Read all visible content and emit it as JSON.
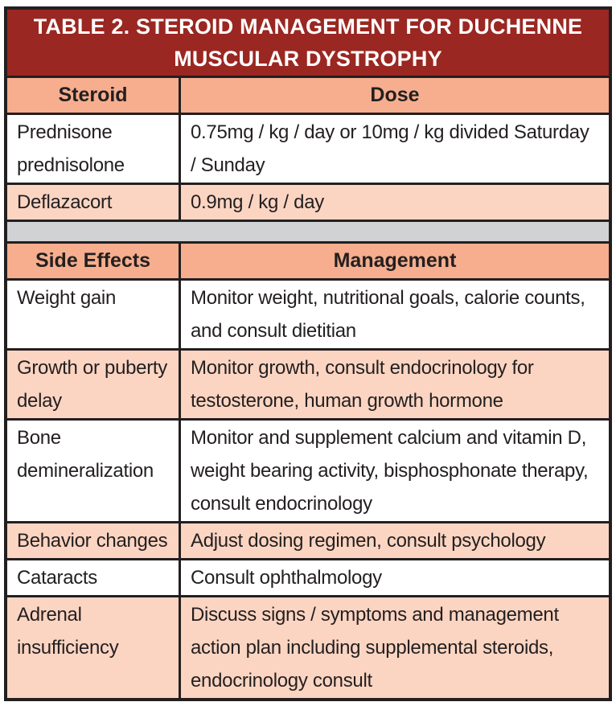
{
  "title": "TABLE 2. STEROID MANAGEMENT FOR DUCHENNE MUSCULAR DYSTROPHY",
  "colors": {
    "title_bg": "#9A2722",
    "title_text": "#FFFFFF",
    "header_bg": "#F6AE8E",
    "stripe_bg": "#FBD5C2",
    "row_bg": "#FFFFFF",
    "spacer_bg": "#D1D2D4",
    "border": "#231F20",
    "text": "#231F20"
  },
  "steroid_section": {
    "headers": [
      "Steroid",
      "Dose"
    ],
    "rows": [
      {
        "steroid": "Prednisone prednisolone",
        "dose": "0.75mg / kg / day or 10mg / kg divided Saturday / Sunday"
      },
      {
        "steroid": "Deflazacort",
        "dose": "0.9mg / kg / day"
      }
    ]
  },
  "side_effects_section": {
    "headers": [
      "Side Effects",
      "Management"
    ],
    "rows": [
      {
        "effect": "Weight gain",
        "management": "Monitor weight, nutritional goals, calorie counts, and consult dietitian"
      },
      {
        "effect": "Growth or puberty delay",
        "management": "Monitor growth, consult endocrinology for testosterone, human growth hormone"
      },
      {
        "effect": "Bone demineralization",
        "management": "Monitor and supplement calcium and vitamin D, weight bearing activity, bisphosphonate therapy, consult endocrinology"
      },
      {
        "effect": "Behavior changes",
        "management": "Adjust dosing regimen, consult psychology"
      },
      {
        "effect": "Cataracts",
        "management": "Consult ophthalmology"
      },
      {
        "effect": "Adrenal insufficiency",
        "management": "Discuss signs / symptoms and management action plan including supplemental steroids, endocrinology consult"
      }
    ]
  }
}
